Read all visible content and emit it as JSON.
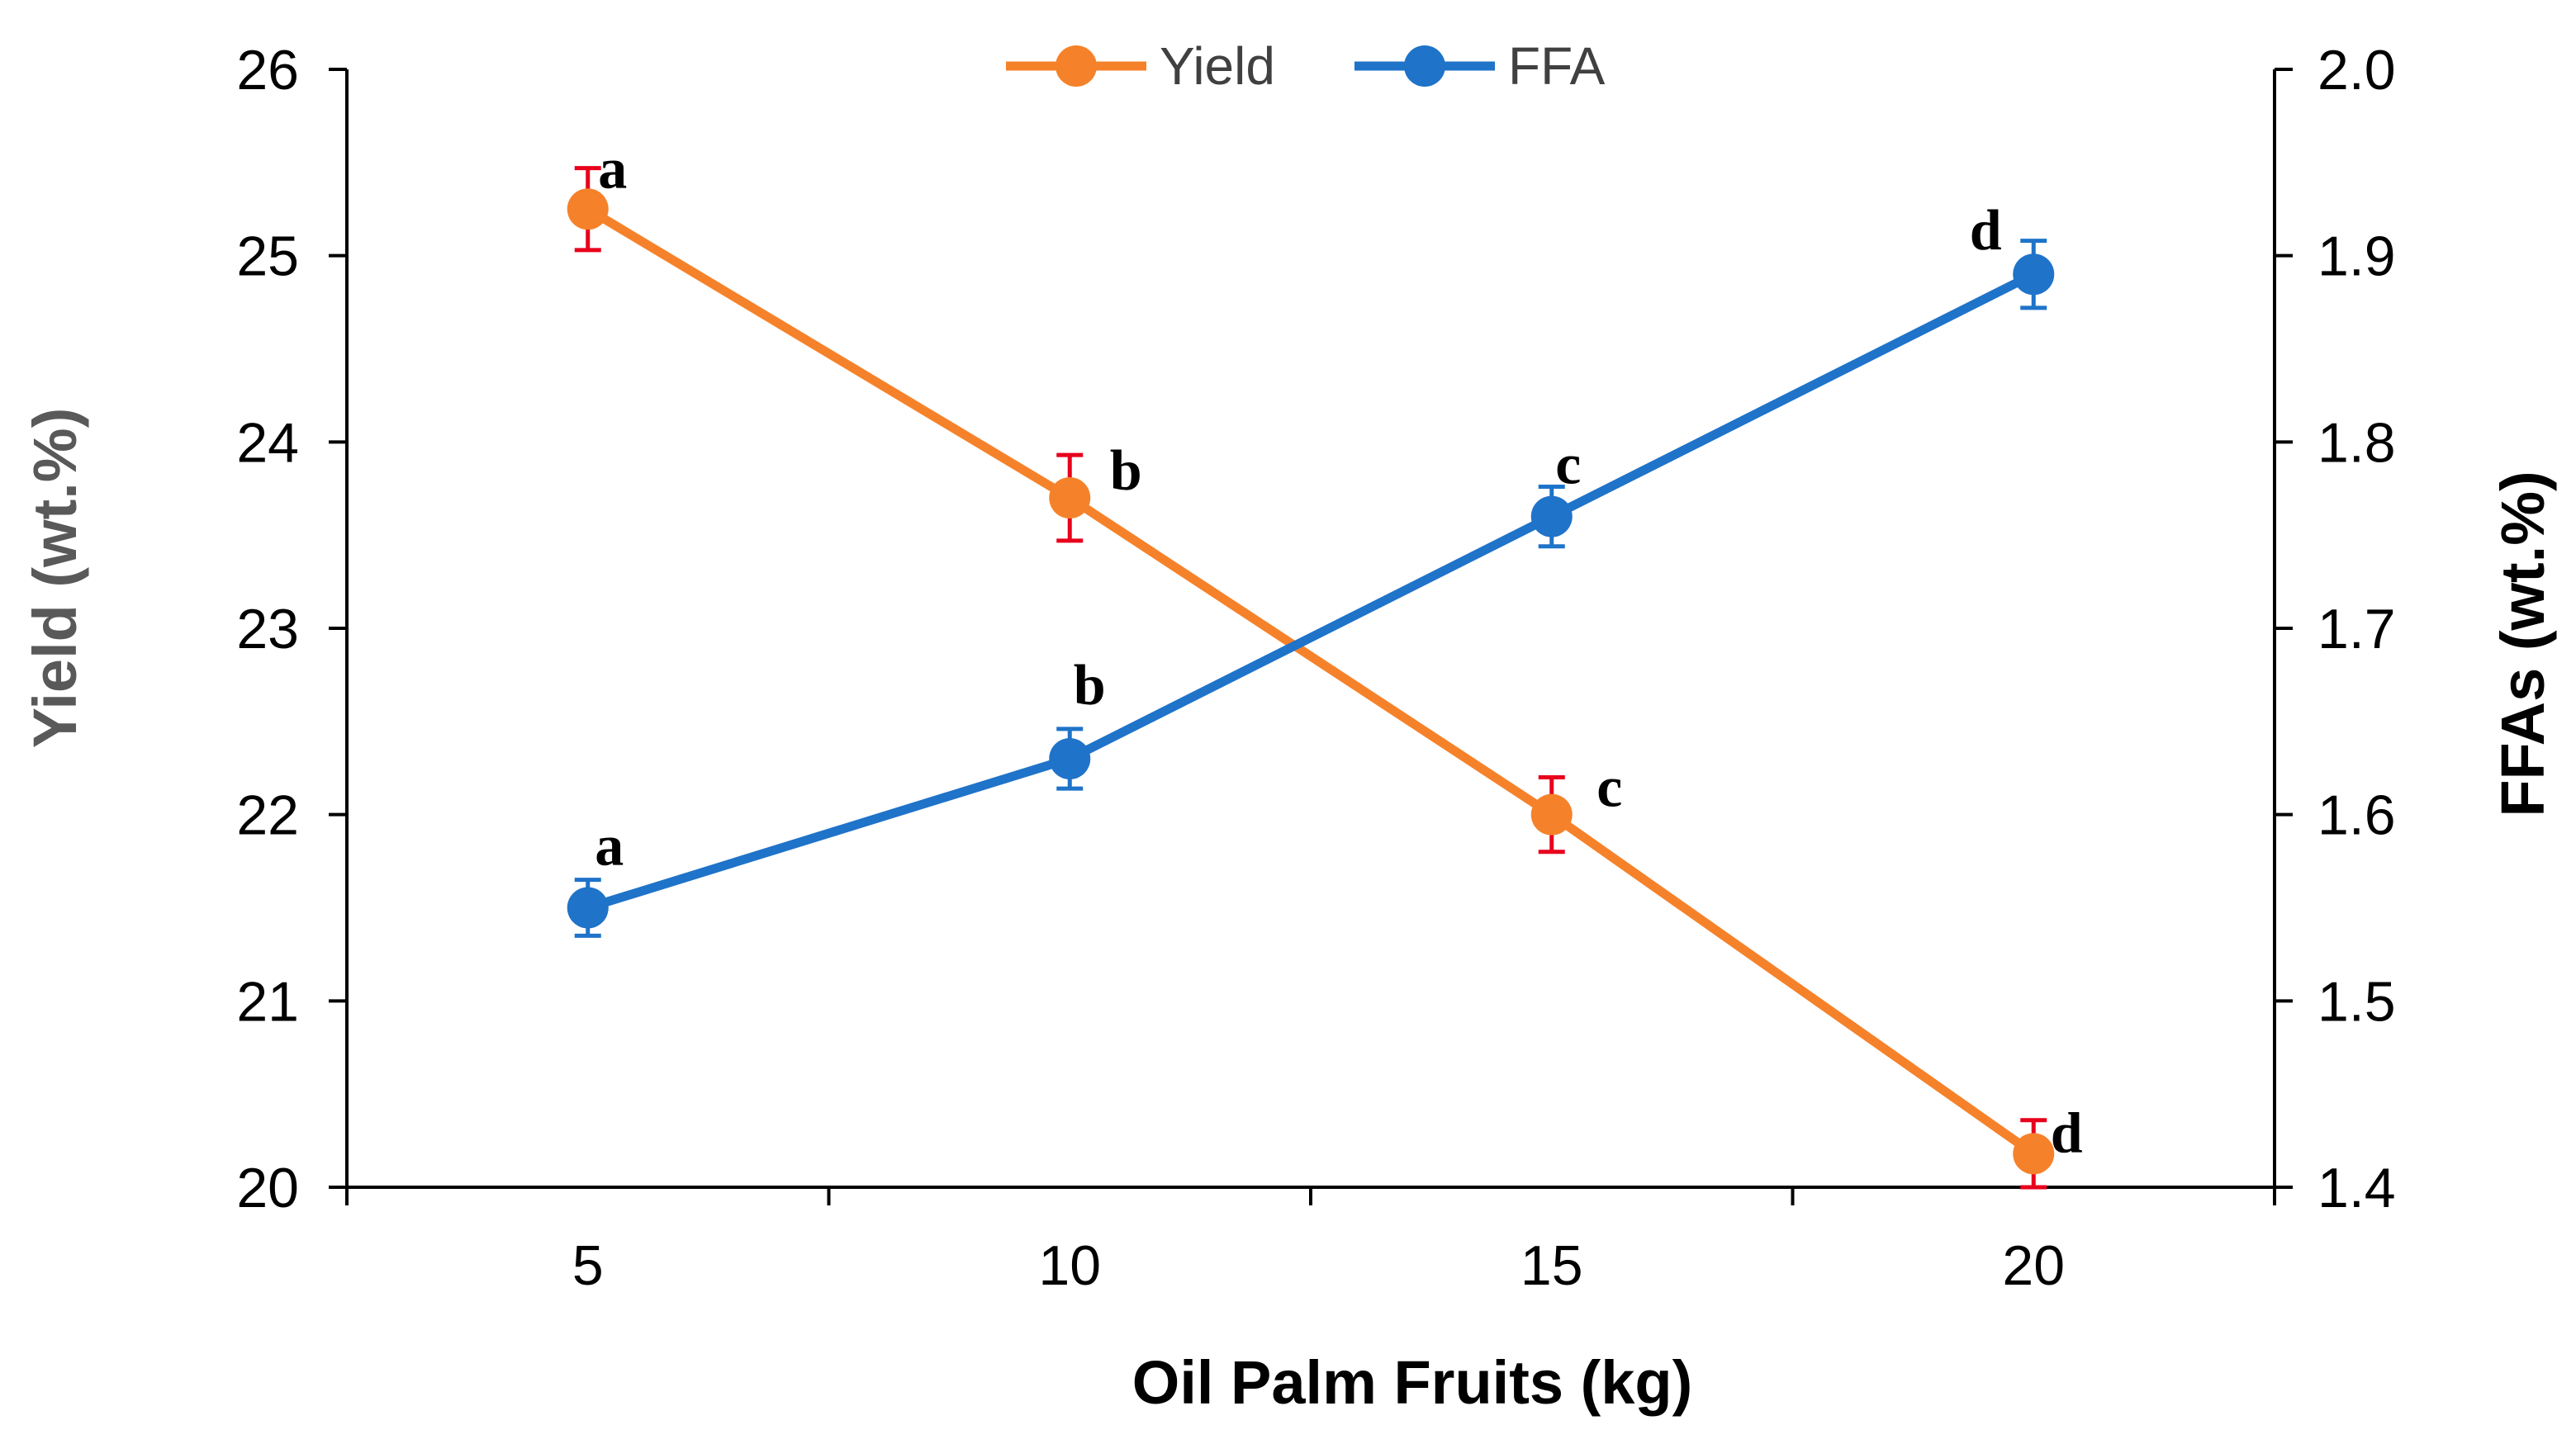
{
  "chart_data": {
    "type": "line",
    "title": "",
    "xlabel": "Oil Palm Fruits (kg)",
    "ylabel": "Yield (wt.%)",
    "y2label": "FFAs (wt.%)",
    "x": [
      5,
      10,
      15,
      20
    ],
    "x_tick_labels": [
      "5",
      "10",
      "15",
      "20"
    ],
    "xlim": [
      2.5,
      22.5
    ],
    "ylim": [
      20,
      26
    ],
    "y_ticks": [
      "20",
      "21",
      "22",
      "23",
      "24",
      "25",
      "26"
    ],
    "y2lim": [
      1.4,
      2.0
    ],
    "y2_ticks": [
      "1.4",
      "1.5",
      "1.6",
      "1.7",
      "1.8",
      "1.9",
      "2.0"
    ],
    "legend_position": "top-center",
    "grid": false,
    "series": [
      {
        "name": "Yield",
        "axis": "left",
        "color": "#F5822A",
        "error_color": "#E8001C",
        "values": [
          25.25,
          23.7,
          22.0,
          20.18
        ],
        "errors": [
          0.22,
          0.23,
          0.2,
          0.18
        ],
        "labels": [
          "a",
          "b",
          "c",
          "d"
        ]
      },
      {
        "name": "FFA",
        "axis": "right",
        "color": "#1F73C9",
        "error_color": "#1F73C9",
        "values": [
          1.55,
          1.63,
          1.76,
          1.89
        ],
        "errors": [
          0.015,
          0.016,
          0.016,
          0.018
        ],
        "labels": [
          "a",
          "b",
          "c",
          "d"
        ]
      }
    ]
  }
}
